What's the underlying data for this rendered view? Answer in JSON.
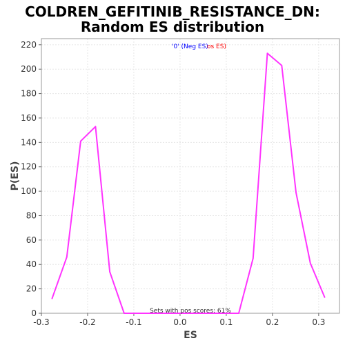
{
  "chart_data": {
    "type": "line",
    "title_line1": "COLDREN_GEFITINIB_RESISTANCE_DN:",
    "title_line2": "Random ES distribution",
    "xlabel": "ES",
    "ylabel": "P(ES)",
    "xlim": [
      -0.3,
      0.345
    ],
    "ylim": [
      0,
      225
    ],
    "xticks": [
      -0.3,
      -0.2,
      -0.1,
      0.0,
      0.1,
      0.2,
      0.3
    ],
    "xtick_labels": [
      "-0.3",
      "-0.2",
      "-0.1",
      "0.0",
      "0.1",
      "0.2",
      "0.3"
    ],
    "yticks": [
      0,
      20,
      40,
      60,
      80,
      100,
      120,
      140,
      160,
      180,
      200,
      220
    ],
    "ytick_labels": [
      "0",
      "20",
      "40",
      "60",
      "80",
      "100",
      "120",
      "140",
      "160",
      "180",
      "200",
      "220"
    ],
    "grid": true,
    "legend": {
      "neg_label": "'0' (Neg ES)",
      "pos_label": "'0' (Pos ES)",
      "neg_visible": "'0' (Neg ES)",
      "pos_visible": "os ES)",
      "neg_color": "#0000ff",
      "pos_color": "#ff0000",
      "placement": "top-center"
    },
    "annotation": "Sets with pos scores: 61%",
    "series": [
      {
        "color": "#ff33ff",
        "x": [
          -0.277,
          -0.245,
          -0.215,
          -0.183,
          -0.152,
          -0.121,
          -0.09,
          -0.059,
          -0.028,
          0.003,
          0.034,
          0.065,
          0.096,
          0.127,
          0.158,
          0.189,
          0.22,
          0.251,
          0.282,
          0.313
        ],
        "y": [
          12,
          46,
          141,
          153,
          34,
          0,
          0,
          0,
          0,
          0,
          0,
          0,
          0,
          0,
          45,
          213,
          203,
          99,
          41,
          13
        ]
      }
    ]
  },
  "colors": {
    "line": "#ff33ff",
    "grid": "#e6e6e6",
    "axis": "#666666"
  }
}
